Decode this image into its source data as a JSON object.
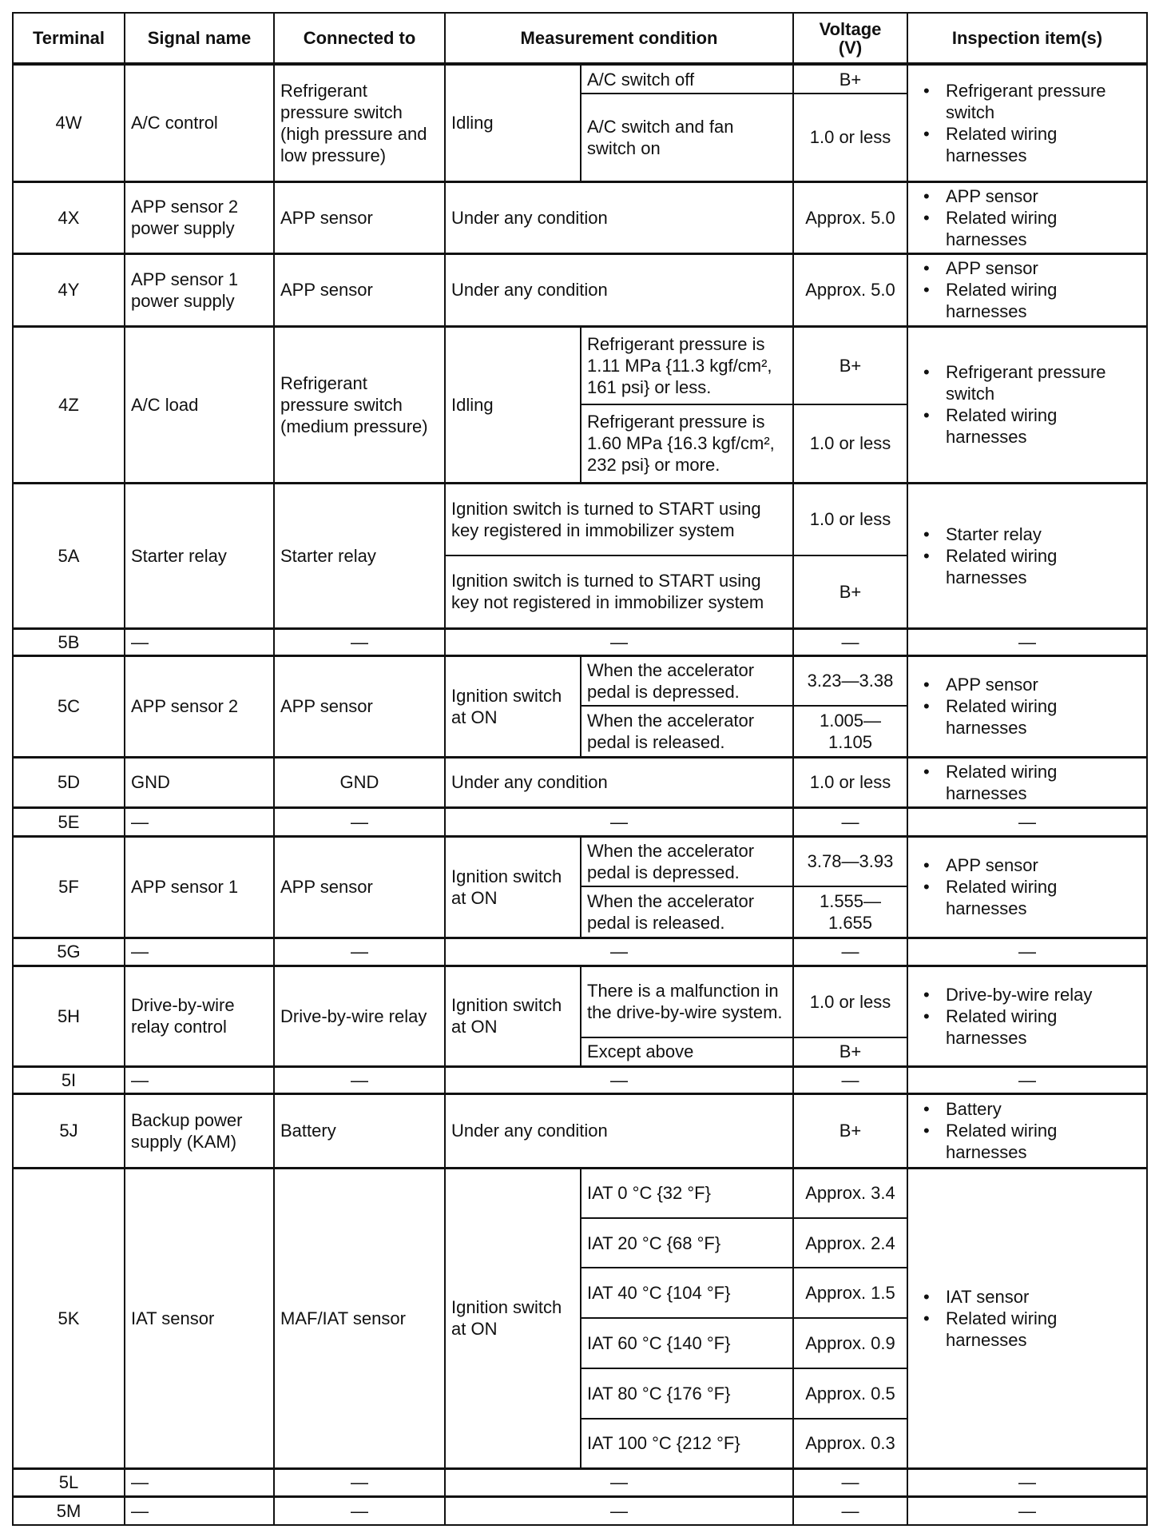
{
  "headers": [
    "Terminal",
    "Signal name",
    "Connected to",
    "Measurement condition",
    "Voltage\n(V)",
    "Inspection item(s)"
  ],
  "rows": [
    {
      "terminal": "4W",
      "signal": "A/C control",
      "connected": "Refrigerant pressure switch (high pressure and low pressure)",
      "main": "Idling",
      "sub": [
        {
          "condition": "A/C switch off",
          "voltage": "B+"
        },
        {
          "condition": "A/C switch and fan switch on",
          "voltage": "1.0 or less"
        }
      ],
      "inspection": [
        "Refrigerant pressure switch",
        "Related wiring harnesses"
      ]
    },
    {
      "terminal": "4X",
      "signal": "APP sensor 2 power supply",
      "connected": "APP sensor",
      "condition": "Under any condition",
      "voltage": "Approx. 5.0",
      "inspection": [
        "APP sensor",
        "Related wiring harnesses"
      ]
    },
    {
      "terminal": "4Y",
      "signal": "APP sensor 1 power supply",
      "connected": "APP sensor",
      "condition": "Under any condition",
      "voltage": "Approx. 5.0",
      "inspection": [
        "APP sensor",
        "Related wiring harnesses"
      ]
    },
    {
      "terminal": "4Z",
      "signal": "A/C load",
      "connected": "Refrigerant pressure switch (medium pressure)",
      "main": "Idling",
      "sub": [
        {
          "condition": "Refrigerant pressure is 1.11 MPa {11.3 kgf/cm², 161 psi} or less.",
          "voltage": "B+"
        },
        {
          "condition": "Refrigerant pressure is 1.60 MPa {16.3 kgf/cm², 232 psi} or more.",
          "voltage": "1.0 or less"
        }
      ],
      "inspection": [
        "Refrigerant pressure switch",
        "Related wiring harnesses"
      ]
    },
    {
      "terminal": "5A",
      "signal": "Starter relay",
      "connected": "Starter relay",
      "sub": [
        {
          "condition": "Ignition switch is turned to START using key registered in immobilizer system",
          "voltage": "1.0 or less"
        },
        {
          "condition": "Ignition switch is turned to START using key not registered in immobilizer system",
          "voltage": "B+"
        }
      ],
      "inspection": [
        "Starter relay",
        "Related wiring harnesses"
      ]
    },
    {
      "terminal": "5B",
      "signal": "—",
      "connected": "—",
      "condition": "—",
      "voltage": "—",
      "inspection_text": "—"
    },
    {
      "terminal": "5C",
      "signal": "APP sensor 2",
      "connected": "APP sensor",
      "main": "Ignition switch at ON",
      "sub": [
        {
          "condition": "When the accelerator pedal is depressed.",
          "voltage": "3.23—3.38"
        },
        {
          "condition": "When the accelerator pedal is released.",
          "voltage": "1.005—1.105"
        }
      ],
      "inspection": [
        "APP sensor",
        "Related wiring harnesses"
      ]
    },
    {
      "terminal": "5D",
      "signal": "GND",
      "connected": "GND",
      "condition": "Under any condition",
      "voltage": "1.0 or less",
      "inspection": [
        "Related wiring harnesses"
      ]
    },
    {
      "terminal": "5E",
      "signal": "—",
      "connected": "—",
      "condition": "—",
      "voltage": "—",
      "inspection_text": "—"
    },
    {
      "terminal": "5F",
      "signal": "APP sensor 1",
      "connected": "APP sensor",
      "main": "Ignition switch at ON",
      "sub": [
        {
          "condition": "When the accelerator pedal is depressed.",
          "voltage": "3.78—3.93"
        },
        {
          "condition": "When the accelerator pedal is released.",
          "voltage": "1.555—1.655"
        }
      ],
      "inspection": [
        "APP sensor",
        "Related wiring harnesses"
      ]
    },
    {
      "terminal": "5G",
      "signal": "—",
      "connected": "—",
      "condition": "—",
      "voltage": "—",
      "inspection_text": "—"
    },
    {
      "terminal": "5H",
      "signal": "Drive-by-wire relay control",
      "connected": "Drive-by-wire relay",
      "main": "Ignition switch at ON",
      "sub": [
        {
          "condition": "There is a malfunction in the drive-by-wire system.",
          "voltage": "1.0 or less"
        },
        {
          "condition": "Except above",
          "voltage": "B+"
        }
      ],
      "inspection": [
        "Drive-by-wire relay",
        "Related wiring harnesses"
      ]
    },
    {
      "terminal": "5I",
      "signal": "—",
      "connected": "—",
      "condition": "—",
      "voltage": "—",
      "inspection_text": "—"
    },
    {
      "terminal": "5J",
      "signal": "Backup power supply (KAM)",
      "connected": "Battery",
      "condition": "Under any condition",
      "voltage": "B+",
      "inspection": [
        "Battery",
        "Related wiring harnesses"
      ]
    },
    {
      "terminal": "5K",
      "signal": "IAT sensor",
      "connected": "MAF/IAT sensor",
      "main": "Ignition switch at ON",
      "sub": [
        {
          "condition": "IAT 0 °C {32 °F}",
          "voltage": "Approx. 3.4"
        },
        {
          "condition": "IAT 20 °C {68 °F}",
          "voltage": "Approx. 2.4"
        },
        {
          "condition": "IAT 40 °C {104 °F}",
          "voltage": "Approx. 1.5"
        },
        {
          "condition": "IAT 60 °C {140 °F}",
          "voltage": "Approx. 0.9"
        },
        {
          "condition": "IAT 80 °C {176 °F}",
          "voltage": "Approx. 0.5"
        },
        {
          "condition": "IAT 100 °C {212 °F}",
          "voltage": "Approx. 0.3"
        }
      ],
      "inspection": [
        "IAT sensor",
        "Related wiring harnesses"
      ]
    },
    {
      "terminal": "5L",
      "signal": "—",
      "connected": "—",
      "condition": "—",
      "voltage": "—",
      "inspection_text": "—"
    },
    {
      "terminal": "5M",
      "signal": "—",
      "connected": "—",
      "condition": "—",
      "voltage": "—",
      "inspection_text": "—"
    }
  ]
}
